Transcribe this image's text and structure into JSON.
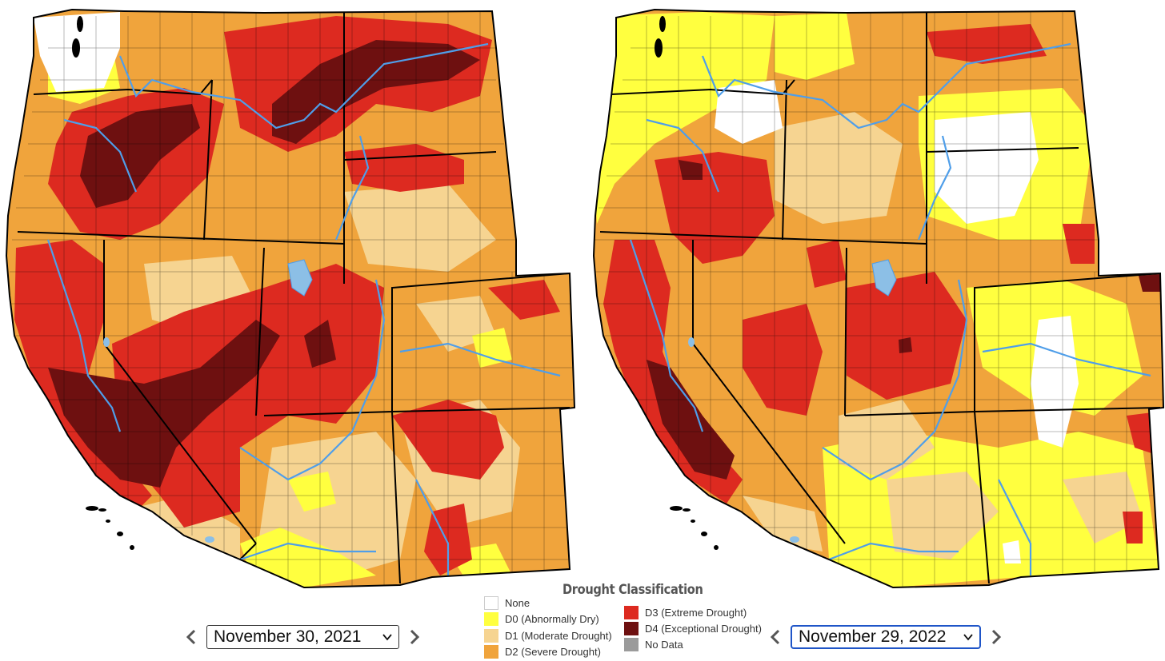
{
  "maps": [
    {
      "id": "left",
      "date": "November 30, 2021"
    },
    {
      "id": "right",
      "date": "November 29, 2022"
    }
  ],
  "legend": {
    "title": "Drought Classification",
    "items": [
      {
        "key": "none",
        "label": "None",
        "color": "#ffffff"
      },
      {
        "key": "d0",
        "label": "D0 (Abnormally Dry)",
        "color": "#ffff3f"
      },
      {
        "key": "d1",
        "label": "D1 (Moderate Drought)",
        "color": "#f6d491"
      },
      {
        "key": "d2",
        "label": "D2 (Severe Drought)",
        "color": "#f0a43c"
      },
      {
        "key": "d3",
        "label": "D3 (Extreme Drought)",
        "color": "#dd2a20"
      },
      {
        "key": "d4",
        "label": "D4 (Exceptional Drought)",
        "color": "#6e1010"
      },
      {
        "key": "nodata",
        "label": "No Data",
        "color": "#9b9b9b"
      }
    ]
  },
  "colors": {
    "river": "#4f9ee9",
    "border": "#000000",
    "lake": "#8cbfe6",
    "accent": "#1f55c8"
  },
  "icons": {
    "prev": "chevron-left-icon",
    "next": "chevron-right-icon",
    "dropdown": "chevron-down-icon"
  }
}
